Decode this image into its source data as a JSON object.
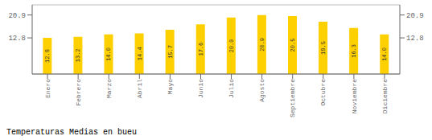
{
  "chart_data": {
    "type": "bar",
    "title": "Temperaturas Medias en bueu",
    "categories": [
      "Enero",
      "Febrero",
      "Marzo",
      "Abril",
      "Mayo",
      "Junio",
      "Julio",
      "Agosto",
      "Septiembre",
      "Octubre",
      "Noviembre",
      "Diciembre"
    ],
    "values": [
      12.8,
      13.2,
      14.0,
      14.4,
      15.7,
      17.6,
      20.0,
      20.9,
      20.5,
      18.5,
      16.3,
      14.0
    ],
    "value_labels": [
      "12.8",
      "13.2",
      "14.0",
      "14.4",
      "15.7",
      "17.6",
      "20.0",
      "20.9",
      "20.5",
      "18.5",
      "16.3",
      "14.0"
    ],
    "data_labels": true,
    "color": "#FFD000",
    "ylim": [
      0.0,
      24.5
    ],
    "yticks": [
      12.8,
      20.9
    ],
    "y2lim": [
      0.0,
      24.5
    ],
    "y2ticks": [
      12.8,
      20.9
    ],
    "grid": true
  }
}
